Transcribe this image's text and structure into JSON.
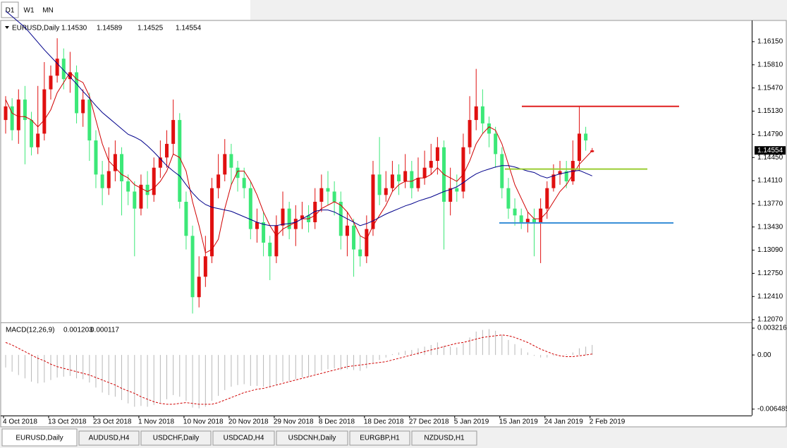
{
  "toolbar": [
    "D1",
    "W1",
    "MN"
  ],
  "tabs": [
    "EURUSD,Daily",
    "AUDUSD,H4",
    "USDCHF,Daily",
    "USDCAD,H4",
    "USDCNH,Daily",
    "EURGBP,H1",
    "NZDUSD,H1"
  ],
  "chart_data": [
    {
      "type": "candlestick",
      "title": "EURUSD,Daily",
      "header_values": [
        "1.14530",
        "1.14589",
        "1.14525",
        "1.14554"
      ],
      "categories": [
        "4 Oct 2018",
        null,
        null,
        null,
        null,
        null,
        null,
        "13 Oct 2018",
        null,
        null,
        null,
        null,
        null,
        null,
        "23 Oct 2018",
        null,
        null,
        null,
        null,
        null,
        null,
        "1 Nov 2018",
        null,
        null,
        null,
        null,
        null,
        null,
        "10 Nov 2018",
        null,
        null,
        null,
        null,
        null,
        null,
        "20 Nov 2018",
        null,
        null,
        null,
        null,
        null,
        null,
        "29 Nov 2018",
        null,
        null,
        null,
        null,
        null,
        null,
        "8 Dec 2018",
        null,
        null,
        null,
        null,
        null,
        null,
        "18 Dec 2018",
        null,
        null,
        null,
        null,
        null,
        null,
        "27 Dec 2018",
        null,
        null,
        null,
        null,
        null,
        null,
        "5 Jan 2019",
        null,
        null,
        null,
        null,
        null,
        null,
        "15 Jan 2019",
        null,
        null,
        null,
        null,
        null,
        null,
        "24 Jan 2019",
        null,
        null,
        null,
        null,
        null,
        null,
        "2 Feb 2019"
      ],
      "open": [
        1.15,
        1.152,
        1.1485,
        1.153,
        1.15,
        1.146,
        1.148,
        1.1545,
        1.1565,
        1.159,
        1.156,
        1.157,
        1.151,
        1.153,
        1.147,
        1.142,
        1.14,
        1.1425,
        1.145,
        1.141,
        1.1395,
        1.137,
        1.1405,
        1.139,
        1.143,
        1.1445,
        1.1465,
        1.15,
        1.138,
        1.133,
        1.124,
        1.127,
        1.13,
        1.14,
        1.142,
        1.145,
        1.143,
        1.1415,
        1.14,
        1.134,
        1.135,
        1.132,
        1.13,
        1.1345,
        1.137,
        1.134,
        1.1355,
        1.136,
        1.135,
        1.138,
        1.14,
        1.1395,
        1.138,
        1.133,
        1.1345,
        1.131,
        1.13,
        1.134,
        1.142,
        1.139,
        1.14,
        1.142,
        1.141,
        1.1425,
        1.14,
        1.1415,
        1.143,
        1.144,
        1.146,
        1.138,
        1.14,
        1.1395,
        1.146,
        1.15,
        1.152,
        1.1495,
        1.148,
        1.145,
        1.14,
        1.137,
        1.136,
        1.135,
        1.1355,
        1.135,
        1.137,
        1.14,
        1.142,
        1.1425,
        1.141,
        1.144,
        1.148,
        1.1453
      ],
      "high": [
        1.1535,
        1.1532,
        1.1545,
        1.155,
        1.1512,
        1.155,
        1.1585,
        1.158,
        1.162,
        1.1605,
        1.16,
        1.158,
        1.1545,
        1.154,
        1.1485,
        1.144,
        1.146,
        1.147,
        1.146,
        1.142,
        1.141,
        1.142,
        1.1425,
        1.1445,
        1.147,
        1.1485,
        1.153,
        1.151,
        1.1395,
        1.1345,
        1.13,
        1.133,
        1.1415,
        1.145,
        1.1472,
        1.1465,
        1.144,
        1.143,
        1.141,
        1.137,
        1.1365,
        1.133,
        1.136,
        1.1395,
        1.138,
        1.1375,
        1.138,
        1.1375,
        1.14,
        1.142,
        1.1425,
        1.141,
        1.1395,
        1.1365,
        1.1355,
        1.133,
        1.136,
        1.144,
        1.1475,
        1.1425,
        1.144,
        1.1435,
        1.145,
        1.144,
        1.1445,
        1.1455,
        1.1465,
        1.1475,
        1.147,
        1.143,
        1.142,
        1.148,
        1.1535,
        1.1575,
        1.1545,
        1.1505,
        1.149,
        1.146,
        1.1415,
        1.1385,
        1.137,
        1.1365,
        1.137,
        1.1385,
        1.141,
        1.1435,
        1.144,
        1.144,
        1.147,
        1.152,
        1.149,
        1.14589
      ],
      "low": [
        1.148,
        1.147,
        1.1465,
        1.1435,
        1.1448,
        1.145,
        1.147,
        1.153,
        1.1555,
        1.1545,
        1.154,
        1.1495,
        1.149,
        1.144,
        1.14,
        1.1375,
        1.139,
        1.141,
        1.136,
        1.1375,
        1.13,
        1.136,
        1.137,
        1.138,
        1.1415,
        1.143,
        1.145,
        1.137,
        1.131,
        1.1216,
        1.1225,
        1.1255,
        1.129,
        1.1385,
        1.141,
        1.1405,
        1.1395,
        1.1385,
        1.1325,
        1.132,
        1.13,
        1.1265,
        1.129,
        1.133,
        1.1325,
        1.1315,
        1.134,
        1.1335,
        1.134,
        1.1365,
        1.1375,
        1.136,
        1.131,
        1.13,
        1.127,
        1.1285,
        1.129,
        1.133,
        1.1375,
        1.138,
        1.1395,
        1.139,
        1.14,
        1.1385,
        1.1395,
        1.1405,
        1.142,
        1.142,
        1.131,
        1.136,
        1.138,
        1.1385,
        1.145,
        1.1485,
        1.148,
        1.146,
        1.143,
        1.1385,
        1.1355,
        1.1345,
        1.134,
        1.1335,
        1.13,
        1.129,
        1.1355,
        1.1395,
        1.1405,
        1.14,
        1.1405,
        1.1425,
        1.1455,
        1.14525
      ],
      "close": [
        1.152,
        1.1485,
        1.153,
        1.15,
        1.146,
        1.148,
        1.1545,
        1.1565,
        1.159,
        1.156,
        1.157,
        1.151,
        1.153,
        1.147,
        1.142,
        1.14,
        1.1425,
        1.145,
        1.141,
        1.1395,
        1.137,
        1.1405,
        1.139,
        1.143,
        1.1445,
        1.1465,
        1.15,
        1.138,
        1.133,
        1.124,
        1.127,
        1.13,
        1.14,
        1.142,
        1.145,
        1.143,
        1.1415,
        1.14,
        1.134,
        1.135,
        1.132,
        1.13,
        1.1345,
        1.137,
        1.134,
        1.1355,
        1.136,
        1.135,
        1.138,
        1.14,
        1.1395,
        1.138,
        1.133,
        1.1345,
        1.131,
        1.13,
        1.134,
        1.142,
        1.139,
        1.14,
        1.142,
        1.141,
        1.1425,
        1.14,
        1.1415,
        1.143,
        1.144,
        1.146,
        1.138,
        1.14,
        1.1395,
        1.146,
        1.15,
        1.152,
        1.1495,
        1.148,
        1.145,
        1.14,
        1.137,
        1.136,
        1.135,
        1.1355,
        1.135,
        1.137,
        1.14,
        1.142,
        1.1425,
        1.141,
        1.144,
        1.148,
        1.147,
        1.14554
      ],
      "up_color": "#e01010",
      "down_color": "#3ce878",
      "lines": [
        {
          "color": "#d00000",
          "values": [
            1.153,
            1.151,
            1.1505,
            1.1505,
            1.15,
            1.149,
            1.15,
            1.1515,
            1.154,
            1.1555,
            1.157,
            1.156,
            1.1555,
            1.1535,
            1.15,
            1.1465,
            1.144,
            1.143,
            1.142,
            1.1415,
            1.1405,
            1.14,
            1.1395,
            1.14,
            1.141,
            1.1425,
            1.145,
            1.1445,
            1.1425,
            1.138,
            1.1345,
            1.1305,
            1.131,
            1.1325,
            1.137,
            1.1405,
            1.1425,
            1.1425,
            1.141,
            1.139,
            1.1365,
            1.1345,
            1.133,
            1.134,
            1.1345,
            1.135,
            1.1355,
            1.1355,
            1.136,
            1.137,
            1.1375,
            1.138,
            1.1375,
            1.1365,
            1.135,
            1.133,
            1.1325,
            1.1345,
            1.136,
            1.1375,
            1.1395,
            1.1405,
            1.141,
            1.141,
            1.1415,
            1.1415,
            1.142,
            1.143,
            1.142,
            1.1415,
            1.141,
            1.142,
            1.144,
            1.1465,
            1.148,
            1.149,
            1.1485,
            1.1465,
            1.1435,
            1.1405,
            1.1385,
            1.1365,
            1.1355,
            1.1355,
            1.1365,
            1.138,
            1.1395,
            1.1405,
            1.142,
            1.1435,
            1.1445,
            1.1455
          ]
        },
        {
          "color": "#00008b",
          "values": [
            1.166,
            1.1652,
            1.1644,
            1.1636,
            1.1625,
            1.1614,
            1.1603,
            1.1593,
            1.1583,
            1.1573,
            1.1563,
            1.1553,
            1.1542,
            1.1532,
            1.1521,
            1.1511,
            1.1503,
            1.1495,
            1.1487,
            1.1479,
            1.1475,
            1.147,
            1.1462,
            1.1453,
            1.1443,
            1.1433,
            1.1425,
            1.1418,
            1.1405,
            1.1393,
            1.1383,
            1.1376,
            1.1372,
            1.137,
            1.1368,
            1.1366,
            1.1362,
            1.1358,
            1.1354,
            1.135,
            1.1347,
            1.1345,
            1.1345,
            1.1347,
            1.1348,
            1.135,
            1.1355,
            1.136,
            1.1366,
            1.1368,
            1.1368,
            1.1365,
            1.136,
            1.1355,
            1.135,
            1.1345,
            1.1348,
            1.1352,
            1.1357,
            1.1362,
            1.1366,
            1.137,
            1.1374,
            1.1377,
            1.1381,
            1.1384,
            1.1387,
            1.1391,
            1.1395,
            1.1398,
            1.1402,
            1.1408,
            1.1415,
            1.1421,
            1.1425,
            1.1428,
            1.1431,
            1.1433,
            1.1433,
            1.1431,
            1.1428,
            1.1425,
            1.1423,
            1.1418,
            1.1415,
            1.1418,
            1.1421,
            1.1423,
            1.1425,
            1.1426,
            1.1422,
            1.1418
          ]
        }
      ],
      "levels": [
        {
          "value": 1.152,
          "color": "#e02020"
        },
        {
          "value": 1.1428,
          "color": "#9acd32"
        },
        {
          "value": 1.1349,
          "color": "#3a8fd8"
        }
      ],
      "current_price": {
        "value": 1.14554,
        "label": "1.14554"
      },
      "ylim": [
        1.1204,
        1.1644
      ],
      "yticks": [
        {
          "value": 1.1615,
          "label": "1.16150"
        },
        {
          "value": 1.1581,
          "label": "1.15810"
        },
        {
          "value": 1.1547,
          "label": "1.15470"
        },
        {
          "value": 1.1513,
          "label": "1.15130"
        },
        {
          "value": 1.1479,
          "label": "1.14790"
        },
        {
          "value": 1.1445,
          "label": "1.14450"
        },
        {
          "value": 1.1411,
          "label": "1.14110"
        },
        {
          "value": 1.1377,
          "label": "1.13770"
        },
        {
          "value": 1.1343,
          "label": "1.13430"
        },
        {
          "value": 1.1309,
          "label": "1.13090"
        },
        {
          "value": 1.1275,
          "label": "1.12750"
        },
        {
          "value": 1.1241,
          "label": "1.12410"
        },
        {
          "value": 1.1207,
          "label": "1.12070"
        }
      ]
    },
    {
      "type": "macd",
      "title": "MACD(12,26,9)",
      "color": "#b8b8b8",
      "values": [
        -0.0015,
        -0.002,
        -0.0024,
        -0.0028,
        -0.0032,
        -0.0034,
        -0.0033,
        -0.003,
        -0.0027,
        -0.0026,
        -0.0025,
        -0.0028,
        -0.0029,
        -0.0033,
        -0.0039,
        -0.0045,
        -0.0048,
        -0.005,
        -0.0054,
        -0.0058,
        -0.0062,
        -0.0061,
        -0.0062,
        -0.006,
        -0.0057,
        -0.0053,
        -0.0048,
        -0.005,
        -0.0055,
        -0.0063,
        -0.0064,
        -0.0062,
        -0.0055,
        -0.0049,
        -0.0042,
        -0.0038,
        -0.0036,
        -0.0035,
        -0.0037,
        -0.0037,
        -0.0038,
        -0.0039,
        -0.0036,
        -0.0032,
        -0.0031,
        -0.0029,
        -0.0027,
        -0.0026,
        -0.0023,
        -0.0019,
        -0.0017,
        -0.0016,
        -0.0018,
        -0.0017,
        -0.0018,
        -0.0019,
        -0.0016,
        -0.0009,
        -0.0006,
        -0.0003,
        0.0001,
        0.0003,
        0.0005,
        0.0006,
        0.0008,
        0.001,
        0.0012,
        0.0015,
        0.0011,
        0.001,
        0.0009,
        0.0014,
        0.0021,
        0.0028,
        0.003,
        0.0031,
        0.0029,
        0.0024,
        0.0018,
        0.0013,
        0.0008,
        0.0003,
        -0.0001,
        -0.0003,
        -0.0003,
        -0.0001,
        0.0,
        0.0001,
        0.0003,
        0.0008,
        0.001,
        0.001203
      ],
      "signal": {
        "color": "#d00000",
        "values": [
          0.0015,
          0.0012,
          0.0008,
          0.0004,
          0.0,
          -0.0004,
          -0.0007,
          -0.0011,
          -0.0014,
          -0.0016,
          -0.0018,
          -0.002,
          -0.0022,
          -0.0024,
          -0.0027,
          -0.003,
          -0.0033,
          -0.0036,
          -0.004,
          -0.0043,
          -0.0046,
          -0.005,
          -0.0053,
          -0.0056,
          -0.0058,
          -0.0059,
          -0.0059,
          -0.0058,
          -0.0057,
          -0.0058,
          -0.0059,
          -0.0059,
          -0.0059,
          -0.0057,
          -0.0054,
          -0.0051,
          -0.0048,
          -0.0045,
          -0.0043,
          -0.0041,
          -0.004,
          -0.0038,
          -0.0036,
          -0.0034,
          -0.0032,
          -0.003,
          -0.0028,
          -0.0026,
          -0.0024,
          -0.0022,
          -0.002,
          -0.0018,
          -0.0016,
          -0.0014,
          -0.0013,
          -0.0012,
          -0.0011,
          -0.001,
          -0.0009,
          -0.0008,
          -0.0006,
          -0.0004,
          -0.0002,
          0.0,
          0.0002,
          0.0004,
          0.0006,
          0.0008,
          0.001,
          0.0012,
          0.0014,
          0.0015,
          0.0017,
          0.0019,
          0.0021,
          0.0022,
          0.0023,
          0.0024,
          0.0023,
          0.0021,
          0.0018,
          0.0015,
          0.0011,
          0.0007,
          0.0004,
          0.0001,
          -0.0001,
          -0.0002,
          -0.0002,
          -0.0001,
          0.0,
          0.000117
        ]
      },
      "ylim": [
        -0.00717,
        0.00373
      ],
      "yticks": [
        0.003216,
        {
          "value": 0,
          "label": "0.00"
        },
        -0.006485
      ]
    }
  ]
}
